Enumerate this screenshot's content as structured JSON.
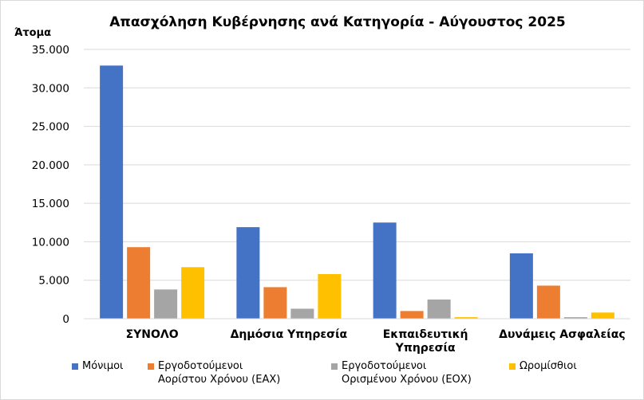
{
  "chart_data": {
    "type": "bar",
    "title": "Απασχόληση Κυβέρνησης ανά Κατηγορία - Αύγουστος 2025",
    "ylabel": "Άτομα",
    "xlabel": "",
    "ylim": [
      0,
      35000
    ],
    "ytick_step": 5000,
    "grid": true,
    "legend_position": "bottom",
    "categories": [
      [
        "ΣΥΝΟΛΟ"
      ],
      [
        "Δημόσια Υπηρεσία"
      ],
      [
        "Εκπαιδευτική",
        "Υπηρεσία"
      ],
      [
        "Δυνάμεις Ασφαλείας"
      ]
    ],
    "series": [
      {
        "name": [
          "Μόνιμοι"
        ],
        "color": "#4472C4",
        "values": [
          32900,
          11900,
          12500,
          8500
        ]
      },
      {
        "name": [
          "Εργοδοτούμενοι",
          "Αορίστου Χρόνου (ΕΑΧ)"
        ],
        "color": "#ED7D31",
        "values": [
          9300,
          4100,
          1000,
          4300
        ]
      },
      {
        "name": [
          "Εργοδοτούμενοι",
          "Ορισμένου Χρόνου (ΕΟΧ)"
        ],
        "color": "#A5A5A5",
        "values": [
          3800,
          1300,
          2500,
          200
        ]
      },
      {
        "name": [
          "Ωρομίσθιοι"
        ],
        "color": "#FFC000",
        "values": [
          6700,
          5800,
          200,
          800
        ]
      }
    ]
  }
}
